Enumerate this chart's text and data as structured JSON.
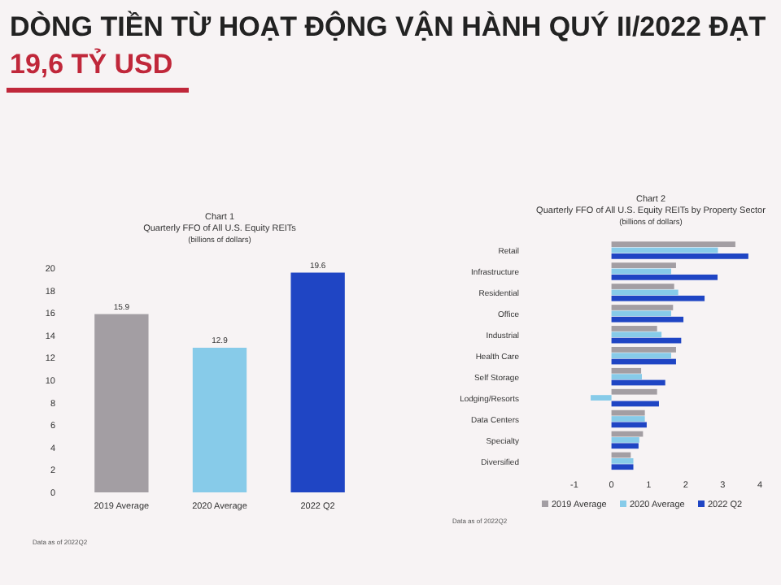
{
  "chart_data": [
    {
      "type": "other",
      "title": "DÒNG TIỀN TỪ HOẠT ĐỘNG VẬN HÀNH QUÝ II/2022 ĐẠT",
      "subtitle": "19,6 TỶ USD"
    },
    {
      "type": "bar",
      "title": "Chart 1",
      "subtitle": "Quarterly FFO of All U.S. Equity REITs",
      "annotations": [
        "(billions of dollars)",
        "Data as of 2022Q2"
      ],
      "categories": [
        "2019 Average",
        "2020 Average",
        "2022 Q2"
      ],
      "values": [
        15.9,
        12.9,
        19.6
      ],
      "colors": [
        "#a39ea3",
        "#87cbe9",
        "#1f45c4"
      ],
      "data_labels": true,
      "ylim": [
        0,
        20
      ],
      "yticks": [
        0,
        2,
        4,
        6,
        8,
        10,
        12,
        14,
        16,
        18,
        20
      ],
      "grid": false
    },
    {
      "type": "bar",
      "orientation": "horizontal",
      "title": "Chart 2",
      "subtitle": "Quarterly FFO of All U.S. Equity REITs by Property Sector",
      "annotations": [
        "(billions of dollars)",
        "Data as of 2022Q2"
      ],
      "categories": [
        "Retail",
        "Infrastructure",
        "Residential",
        "Office",
        "Industrial",
        "Health Care",
        "Self Storage",
        "Lodging/Resorts",
        "Data Centers",
        "Specialty",
        "Diversified"
      ],
      "series": [
        {
          "name": "2019 Average",
          "color": "#a39ea3",
          "values": [
            3.34,
            1.74,
            1.69,
            1.66,
            1.23,
            1.74,
            0.8,
            1.23,
            0.9,
            0.85,
            0.52
          ]
        },
        {
          "name": "2020 Average",
          "color": "#87cbe9",
          "values": [
            2.87,
            1.61,
            1.8,
            1.61,
            1.35,
            1.61,
            0.82,
            -0.56,
            0.9,
            0.75,
            0.59
          ]
        },
        {
          "name": "2022 Q2",
          "color": "#1f45c4",
          "values": [
            3.69,
            2.86,
            2.51,
            1.94,
            1.88,
            1.74,
            1.45,
            1.28,
            0.95,
            0.73,
            0.59
          ]
        }
      ],
      "xlim": [
        -1,
        4
      ],
      "xticks": [
        -1,
        0,
        1,
        2,
        3,
        4
      ],
      "legend": "bottom"
    }
  ]
}
